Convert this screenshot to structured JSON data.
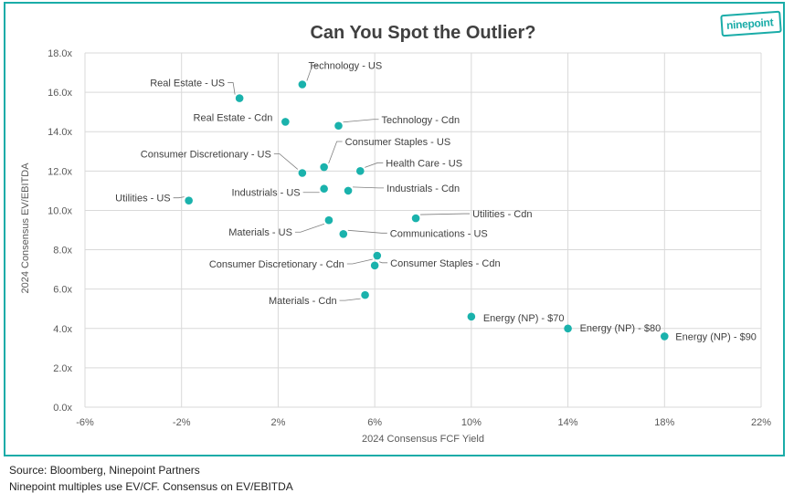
{
  "brand": {
    "logo_text": "ninepoint",
    "accent": "#1aaca8",
    "point_color": "#1ab2ac"
  },
  "footer": {
    "source": "Source: Bloomberg, Ninepoint Partners",
    "note": "Ninepoint multiples use EV/CF. Consensus on EV/EBITDA"
  },
  "chart_data": {
    "type": "scatter",
    "title": "Can You Spot the Outlier?",
    "xlabel": "2024 Consensus FCF Yield",
    "ylabel": "2024 Consensus EV/EBITDA",
    "xlim": [
      -6,
      22
    ],
    "ylim": [
      0,
      18
    ],
    "x_ticks": [
      -6,
      -2,
      2,
      6,
      10,
      14,
      18,
      22
    ],
    "x_tick_labels": [
      "-6%",
      "-2%",
      "2%",
      "6%",
      "10%",
      "14%",
      "18%",
      "22%"
    ],
    "y_ticks": [
      0,
      2,
      4,
      6,
      8,
      10,
      12,
      14,
      16,
      18
    ],
    "y_tick_labels": [
      "0.0x",
      "2.0x",
      "4.0x",
      "6.0x",
      "8.0x",
      "10.0x",
      "12.0x",
      "14.0x",
      "16.0x",
      "18.0x"
    ],
    "grid": true,
    "points": [
      {
        "label": "Technology - US",
        "x": 3.0,
        "y": 16.4
      },
      {
        "label": "Real Estate - US",
        "x": 0.4,
        "y": 15.7
      },
      {
        "label": "Real Estate - Cdn",
        "x": 2.3,
        "y": 14.5
      },
      {
        "label": "Technology - Cdn",
        "x": 4.5,
        "y": 14.3
      },
      {
        "label": "Consumer Staples - US",
        "x": 3.9,
        "y": 12.2
      },
      {
        "label": "Consumer Discretionary - US",
        "x": 3.0,
        "y": 11.9
      },
      {
        "label": "Health Care - US",
        "x": 5.4,
        "y": 12.0
      },
      {
        "label": "Utilities - US",
        "x": -1.7,
        "y": 10.5
      },
      {
        "label": "Industrials - US",
        "x": 3.9,
        "y": 11.1
      },
      {
        "label": "Industrials - Cdn",
        "x": 4.9,
        "y": 11.0
      },
      {
        "label": "Utilities - Cdn",
        "x": 7.7,
        "y": 9.6
      },
      {
        "label": "Materials - US",
        "x": 4.1,
        "y": 9.5
      },
      {
        "label": "Communications - US",
        "x": 4.7,
        "y": 8.8
      },
      {
        "label": "Consumer Discretionary - Cdn",
        "x": 6.1,
        "y": 7.7
      },
      {
        "label": "Consumer Staples - Cdn",
        "x": 6.0,
        "y": 7.2
      },
      {
        "label": "Materials - Cdn",
        "x": 5.6,
        "y": 5.7
      },
      {
        "label": "Energy (NP) - $70",
        "x": 10.0,
        "y": 4.6
      },
      {
        "label": "Energy (NP) - $80",
        "x": 14.0,
        "y": 4.0
      },
      {
        "label": "Energy (NP) - $90",
        "x": 18.0,
        "y": 3.6
      }
    ]
  }
}
